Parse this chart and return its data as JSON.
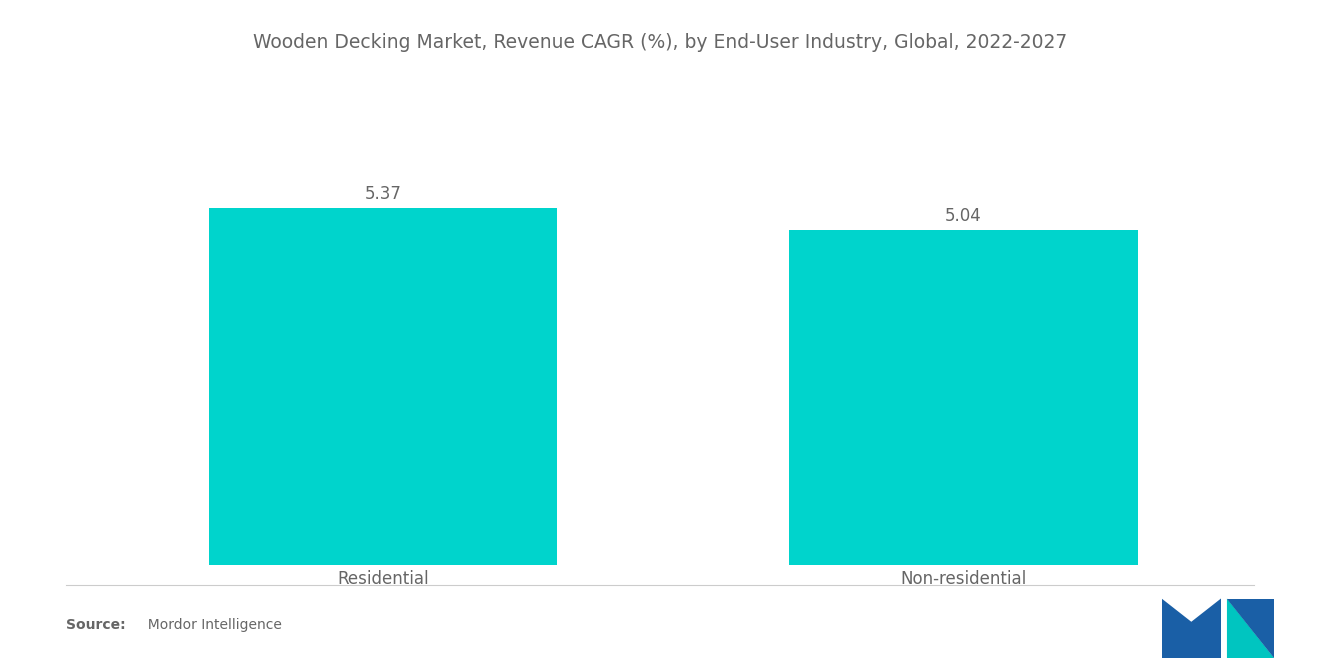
{
  "title": "Wooden Decking Market, Revenue CAGR (%), by End-User Industry, Global, 2022-2027",
  "categories": [
    "Residential",
    "Non-residential"
  ],
  "values": [
    5.37,
    5.04
  ],
  "bar_color": "#00D4CC",
  "bar_positions": [
    1,
    3
  ],
  "bar_width": 1.2,
  "ylim": [
    0,
    6.5
  ],
  "xlim": [
    0,
    4
  ],
  "value_labels": [
    "5.37",
    "5.04"
  ],
  "title_fontsize": 13.5,
  "label_fontsize": 12,
  "value_fontsize": 12,
  "source_bold": "Source:",
  "source_normal": "  Mordor Intelligence",
  "background_color": "#ffffff",
  "text_color": "#666666",
  "logo_dark_blue": "#1a5fa6",
  "logo_teal": "#00c5c0"
}
